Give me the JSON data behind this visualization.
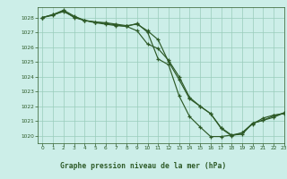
{
  "title": "Graphe pression niveau de la mer (hPa)",
  "xlim": [
    -0.5,
    23
  ],
  "ylim": [
    1019.5,
    1028.7
  ],
  "yticks": [
    1020,
    1021,
    1022,
    1023,
    1024,
    1025,
    1026,
    1027,
    1028
  ],
  "xticks": [
    0,
    1,
    2,
    3,
    4,
    5,
    6,
    7,
    8,
    9,
    10,
    11,
    12,
    13,
    14,
    15,
    16,
    17,
    18,
    19,
    20,
    21,
    22,
    23
  ],
  "bg_color": "#cceee8",
  "grid_color": "#99ccbb",
  "line_color": "#2d5a27",
  "title_color": "#2d5a27",
  "title_bg_color": "#88bb88",
  "axis_label_color": "#2d5a27",
  "tick_color": "#2d5a27",
  "line1_y": [
    1028.0,
    1028.2,
    1028.4,
    1028.05,
    1027.8,
    1027.7,
    1027.65,
    1027.55,
    1027.45,
    1027.55,
    1027.1,
    1026.5,
    1025.0,
    1023.8,
    1022.5,
    1022.0,
    1021.5,
    1020.5,
    1020.0,
    1020.2,
    1020.8,
    1021.2,
    1021.4,
    1021.5
  ],
  "line2_y": [
    1028.0,
    1028.2,
    1028.5,
    1028.1,
    1027.8,
    1027.65,
    1027.55,
    1027.45,
    1027.4,
    1027.6,
    1027.0,
    1025.2,
    1024.8,
    1022.7,
    1021.3,
    1020.6,
    1019.95,
    1019.95,
    1020.05,
    1020.1,
    1020.85,
    1021.05,
    1021.35,
    1021.55
  ],
  "line3_y": [
    1028.0,
    1028.15,
    1028.45,
    1028.0,
    1027.8,
    1027.7,
    1027.6,
    1027.5,
    1027.4,
    1027.1,
    1026.2,
    1025.9,
    1025.1,
    1024.0,
    1022.6,
    1022.0,
    1021.5,
    1020.55,
    1020.05,
    1020.2,
    1020.85,
    1021.05,
    1021.25,
    1021.55
  ]
}
